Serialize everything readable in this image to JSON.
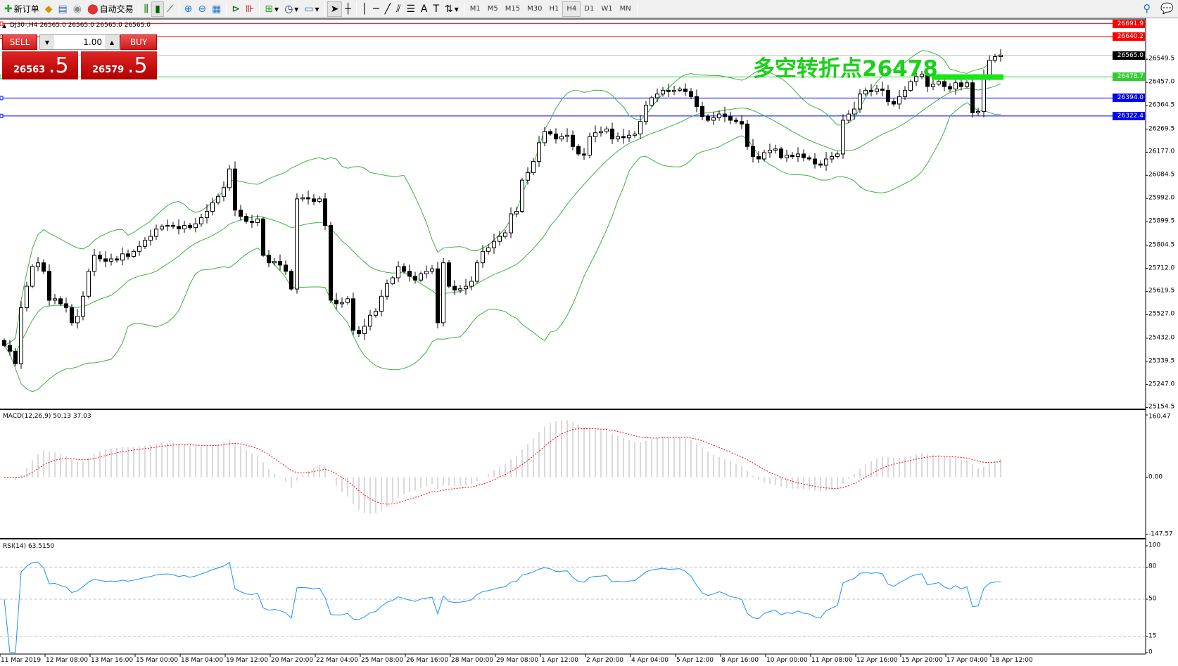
{
  "toolbar": {
    "new_order": "新订单",
    "auto_trading": "自动交易",
    "timeframes": [
      "M1",
      "M5",
      "M15",
      "M30",
      "H1",
      "H4",
      "D1",
      "W1",
      "MN"
    ],
    "selected_timeframe": "H4"
  },
  "chart": {
    "symbol_title": "DJ30-,H4  26565.0 26565.0 26565.0 26565.0",
    "annotation": "多空转折点26478",
    "annotation_color": "#19d119"
  },
  "trade_panel": {
    "sell_label": "SELL",
    "buy_label": "BUY",
    "lot": "1.00",
    "sell_price_main": "26563",
    "sell_price_big": ".5",
    "buy_price_main": "26579",
    "buy_price_big": ".5"
  },
  "price_axis": [
    "26549.5",
    "26457.0",
    "26364.5",
    "26269.5",
    "26177.0",
    "26084.5",
    "25992.0",
    "25899.5",
    "25804.5",
    "25712.0",
    "25619.5",
    "25527.0",
    "25432.0",
    "25339.5",
    "25247.0",
    "25154.5"
  ],
  "hlines": [
    {
      "price": 26691.9,
      "label": "26691.9",
      "color": "#ff0000"
    },
    {
      "price": 26640.2,
      "label": "26640.2",
      "color": "#ff0000"
    },
    {
      "price": 26565.0,
      "label": "26565.0",
      "color": "#000000",
      "line": "#c0c0c0"
    },
    {
      "price": 26478.7,
      "label": "26478.7",
      "color": "#32cd32"
    },
    {
      "price": 26394.0,
      "label": "26394.0",
      "color": "#0000ff"
    },
    {
      "price": 26322.4,
      "label": "26322.4",
      "color": "#0000ff"
    }
  ],
  "macd": {
    "title": "MACD(12,26,9) 50.13 37.03",
    "axis": [
      "160.47",
      "0.00",
      "-147.57"
    ]
  },
  "rsi": {
    "title": "RSI(14) 63.5150",
    "axis": [
      "100",
      "80",
      "50",
      "15",
      "0"
    ]
  },
  "time_axis": [
    "11 Mar 2019",
    "12 Mar 08:00",
    "13 Mar 16:00",
    "15 Mar 00:00",
    "18 Mar 04:00",
    "19 Mar 12:00",
    "20 Mar 20:00",
    "22 Mar 04:00",
    "25 Mar 08:00",
    "26 Mar 16:00",
    "28 Mar 00:00",
    "29 Mar 08:00",
    "1 Apr 12:00",
    "2 Apr 20:00",
    "4 Apr 04:00",
    "5 Apr 12:00",
    "8 Apr 16:00",
    "10 Apr 00:00",
    "11 Apr 08:00",
    "12 Apr 16:00",
    "15 Apr 20:00",
    "17 Apr 04:00",
    "18 Apr 12:00"
  ],
  "chart_data": {
    "type": "candlestick",
    "timeframe": "H4",
    "ylim": [
      25154.5,
      26691.9
    ],
    "indicators": [
      "Bollinger Bands (20,2)",
      "MACD(12,26,9)",
      "RSI(14)"
    ],
    "close": [
      25403,
      25380,
      25330,
      25554,
      25640,
      25719,
      25734,
      25700,
      25584,
      25590,
      25570,
      25554,
      25494,
      25520,
      25600,
      25700,
      25764,
      25750,
      25740,
      25750,
      25745,
      25770,
      25760,
      25780,
      25800,
      25824,
      25840,
      25869,
      25880,
      25884,
      25880,
      25870,
      25884,
      25875,
      25890,
      25915,
      25940,
      25975,
      26000,
      26035,
      26110,
      25945,
      25920,
      25900,
      25895,
      25910,
      25764,
      25734,
      25740,
      25725,
      25700,
      25629,
      25990,
      25995,
      25990,
      25980,
      25990,
      25884,
      25584,
      25570,
      25575,
      25590,
      25464,
      25450,
      25480,
      25524,
      25540,
      25600,
      25650,
      25674,
      25719,
      25700,
      25680,
      25665,
      25690,
      25700,
      25710,
      25494,
      25734,
      25640,
      25625,
      25630,
      25640,
      25660,
      25734,
      25780,
      25794,
      25820,
      25840,
      25854,
      25930,
      25940,
      26065,
      26095,
      26140,
      26215,
      26260,
      26250,
      26230,
      26240,
      26245,
      26200,
      26170,
      26165,
      26240,
      26255,
      26260,
      26270,
      26230,
      26240,
      26235,
      26245,
      26250,
      26300,
      26365,
      26395,
      26410,
      26425,
      26420,
      26425,
      26430,
      26420,
      26400,
      26360,
      26320,
      26305,
      26315,
      26330,
      26320,
      26305,
      26300,
      26290,
      26200,
      26160,
      26150,
      26175,
      26185,
      26190,
      26155,
      26165,
      26160,
      26170,
      26155,
      26150,
      26130,
      26125,
      26150,
      26160,
      26170,
      26305,
      26330,
      26350,
      26410,
      26425,
      26420,
      26430,
      26425,
      26380,
      26370,
      26400,
      26425,
      26460,
      26480,
      26490,
      26440,
      26450,
      26460,
      26440,
      26430,
      26455,
      26440,
      26455,
      26335,
      26340,
      26480,
      26545,
      26560,
      26565
    ]
  }
}
